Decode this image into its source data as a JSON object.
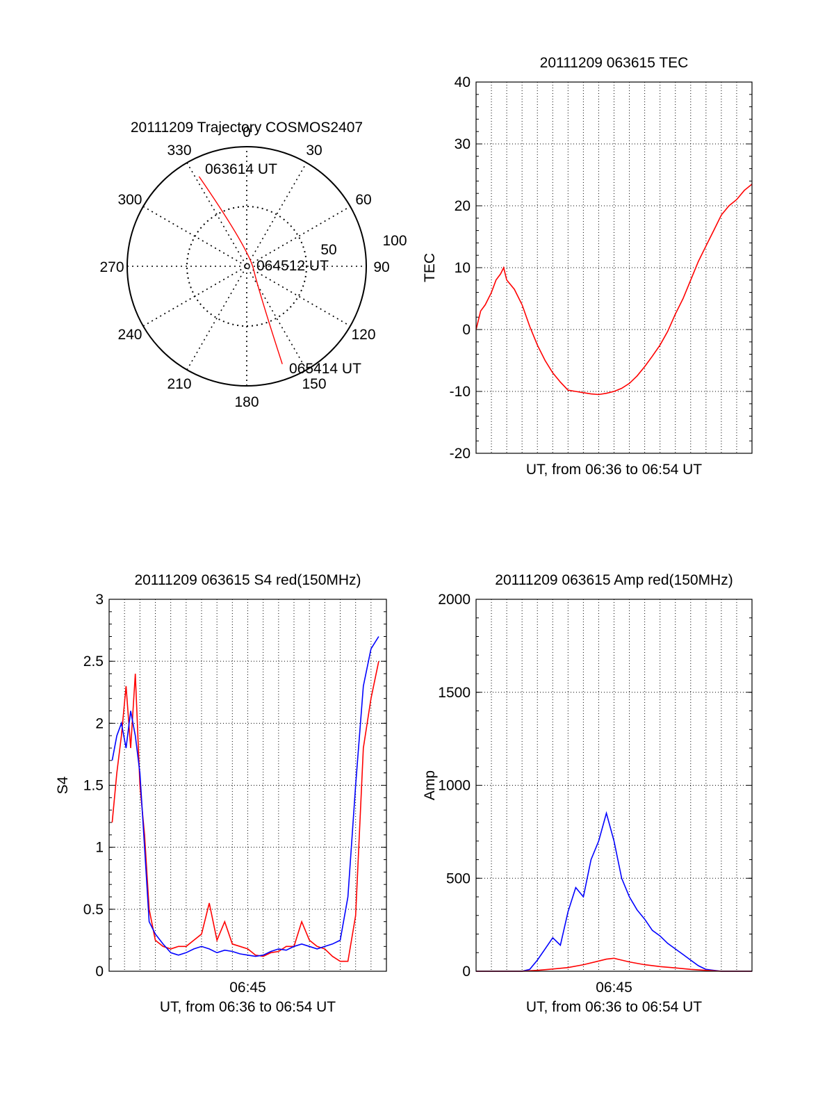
{
  "colors": {
    "red_series": "#ff0000",
    "blue_series": "#0000ff",
    "axis": "#000000",
    "grid": "#000000"
  },
  "polar": {
    "title": "20111209 Trajectory COSMOS2407",
    "angle_labels": [
      "0",
      "30",
      "60",
      "90",
      "120",
      "150",
      "180",
      "210",
      "240",
      "270",
      "300",
      "330"
    ],
    "radial_labels": [
      "50",
      "100"
    ],
    "annotations": [
      "063614 UT",
      "064512 UT",
      "065414 UT"
    ],
    "trajectory": {
      "start": {
        "azimuth": 332,
        "radius": 85
      },
      "end": {
        "azimuth": 160,
        "radius": 87
      }
    }
  },
  "chart_data": [
    {
      "type": "line",
      "title": "20111209 063615 TEC",
      "xlabel": "UT, from 06:36 to 06:54 UT",
      "ylabel": "TEC",
      "ylim": [
        -20,
        40
      ],
      "yticks": [
        "-20",
        "-10",
        "0",
        "10",
        "20",
        "30",
        "40"
      ],
      "xlim": [
        0,
        18
      ],
      "grid": true,
      "series": [
        {
          "color": "#ff0000",
          "x": [
            0,
            0.3,
            0.6,
            1,
            1.3,
            1.6,
            1.8,
            2,
            2.5,
            3,
            3.5,
            4,
            4.5,
            5,
            5.5,
            6,
            6.5,
            7,
            7.5,
            8,
            8.5,
            9,
            9.5,
            10,
            10.5,
            11,
            11.5,
            12,
            12.5,
            13,
            13.5,
            14,
            14.5,
            15,
            15.5,
            16,
            16.5,
            17,
            17.5,
            18
          ],
          "y": [
            0,
            3,
            4,
            6,
            8,
            9,
            10,
            8,
            6.5,
            4,
            0.5,
            -2.5,
            -5,
            -7,
            -8.5,
            -9.8,
            -10,
            -10.2,
            -10.4,
            -10.5,
            -10.3,
            -10,
            -9.5,
            -8.7,
            -7.5,
            -6,
            -4.3,
            -2.5,
            -0.3,
            2.5,
            5,
            8,
            11,
            13.5,
            16,
            18.5,
            20,
            21,
            22.5,
            23.5
          ]
        }
      ]
    },
    {
      "type": "line",
      "title": "20111209 063615 S4 red(150MHz)",
      "xlabel": "UT, from 06:36 to 06:54 UT",
      "ylabel": "S4",
      "ylim": [
        0,
        3
      ],
      "yticks": [
        "0",
        "0.5",
        "1",
        "1.5",
        "2",
        "2.5",
        "3"
      ],
      "xlim": [
        0,
        18
      ],
      "xtick_labels": [
        {
          "x": 9,
          "label": "06:45"
        }
      ],
      "grid": true,
      "series": [
        {
          "color": "#ff0000",
          "x": [
            0.2,
            0.5,
            0.8,
            1.1,
            1.4,
            1.7,
            2,
            2.3,
            2.6,
            3,
            3.5,
            4,
            4.5,
            5,
            5.5,
            6,
            6.5,
            7,
            7.5,
            8,
            8.5,
            9,
            9.5,
            10,
            10.5,
            11,
            11.5,
            12,
            12.5,
            13,
            13.5,
            14,
            14.5,
            15,
            15.5,
            16,
            16.5,
            17,
            17.5
          ],
          "y": [
            1.2,
            1.6,
            1.9,
            2.3,
            1.8,
            2.4,
            1.5,
            1.1,
            0.5,
            0.25,
            0.2,
            0.18,
            0.2,
            0.2,
            0.25,
            0.3,
            0.55,
            0.25,
            0.4,
            0.22,
            0.2,
            0.18,
            0.13,
            0.12,
            0.15,
            0.16,
            0.2,
            0.2,
            0.4,
            0.25,
            0.2,
            0.18,
            0.12,
            0.08,
            0.08,
            0.45,
            1.8,
            2.2,
            2.5
          ]
        },
        {
          "color": "#0000ff",
          "x": [
            0.2,
            0.5,
            0.8,
            1.1,
            1.4,
            1.7,
            2,
            2.3,
            2.6,
            3,
            3.5,
            4,
            4.5,
            5,
            5.5,
            6,
            6.5,
            7,
            7.5,
            8,
            8.5,
            9,
            9.5,
            10,
            10.5,
            11,
            11.5,
            12,
            12.5,
            13,
            13.5,
            14,
            14.5,
            15,
            15.5,
            16,
            16.5,
            17,
            17.5
          ],
          "y": [
            1.7,
            1.9,
            2.0,
            1.8,
            2.1,
            1.9,
            1.6,
            1.0,
            0.4,
            0.3,
            0.22,
            0.15,
            0.13,
            0.15,
            0.18,
            0.2,
            0.18,
            0.15,
            0.17,
            0.16,
            0.14,
            0.13,
            0.12,
            0.13,
            0.16,
            0.18,
            0.17,
            0.2,
            0.22,
            0.2,
            0.18,
            0.2,
            0.22,
            0.25,
            0.6,
            1.5,
            2.3,
            2.6,
            2.7
          ]
        }
      ]
    },
    {
      "type": "line",
      "title": "20111209 063615 Amp red(150MHz)",
      "xlabel": "UT, from 06:36 to 06:54 UT",
      "ylabel": "Amp",
      "ylim": [
        0,
        2000
      ],
      "yticks": [
        "0",
        "500",
        "1000",
        "1500",
        "2000"
      ],
      "xlim": [
        0,
        18
      ],
      "xtick_labels": [
        {
          "x": 9,
          "label": "06:45"
        }
      ],
      "grid": true,
      "series": [
        {
          "color": "#0000ff",
          "x": [
            0,
            2,
            3,
            3.5,
            4,
            4.5,
            5,
            5.5,
            6,
            6.5,
            7,
            7.5,
            8,
            8.5,
            9,
            9.5,
            10,
            10.5,
            11,
            11.5,
            12,
            12.5,
            13,
            13.5,
            14,
            14.5,
            15,
            16,
            18
          ],
          "y": [
            0,
            0,
            0,
            10,
            60,
            120,
            180,
            140,
            320,
            450,
            400,
            600,
            700,
            850,
            700,
            500,
            400,
            330,
            280,
            220,
            190,
            150,
            120,
            90,
            60,
            30,
            10,
            0,
            0
          ]
        },
        {
          "color": "#ff0000",
          "x": [
            0,
            3,
            4,
            5,
            6,
            7,
            8,
            8.5,
            9,
            9.5,
            10,
            11,
            12,
            13,
            14,
            15,
            16,
            18
          ],
          "y": [
            0,
            0,
            5,
            12,
            20,
            35,
            55,
            65,
            70,
            60,
            50,
            35,
            25,
            18,
            10,
            5,
            0,
            0
          ]
        }
      ]
    }
  ]
}
